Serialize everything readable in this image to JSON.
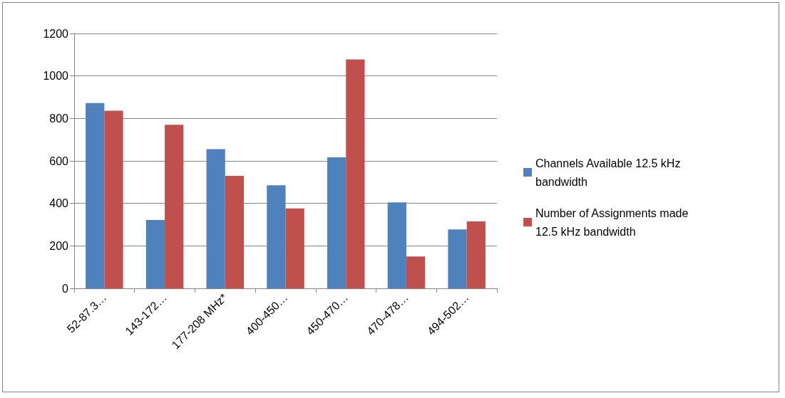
{
  "chart_data": {
    "type": "bar",
    "categories": [
      "52-87.3…",
      "143-172…",
      "177-208 MHz*",
      "400-450…",
      "450-470…",
      "470-478…",
      "494-502…"
    ],
    "series": [
      {
        "name": "Channels Available 12.5 kHz bandwidth",
        "color": "#4f81bd",
        "values": [
          872,
          322,
          655,
          485,
          617,
          405,
          277
        ]
      },
      {
        "name": "Number of Assignments made 12.5 kHz bandwidth",
        "color": "#c0504d",
        "values": [
          836,
          770,
          530,
          376,
          1078,
          150,
          315
        ]
      }
    ],
    "ylim": [
      0,
      1200
    ],
    "yticks": [
      0,
      200,
      400,
      600,
      800,
      1000,
      1200
    ],
    "grid": "y",
    "legend": "right"
  }
}
